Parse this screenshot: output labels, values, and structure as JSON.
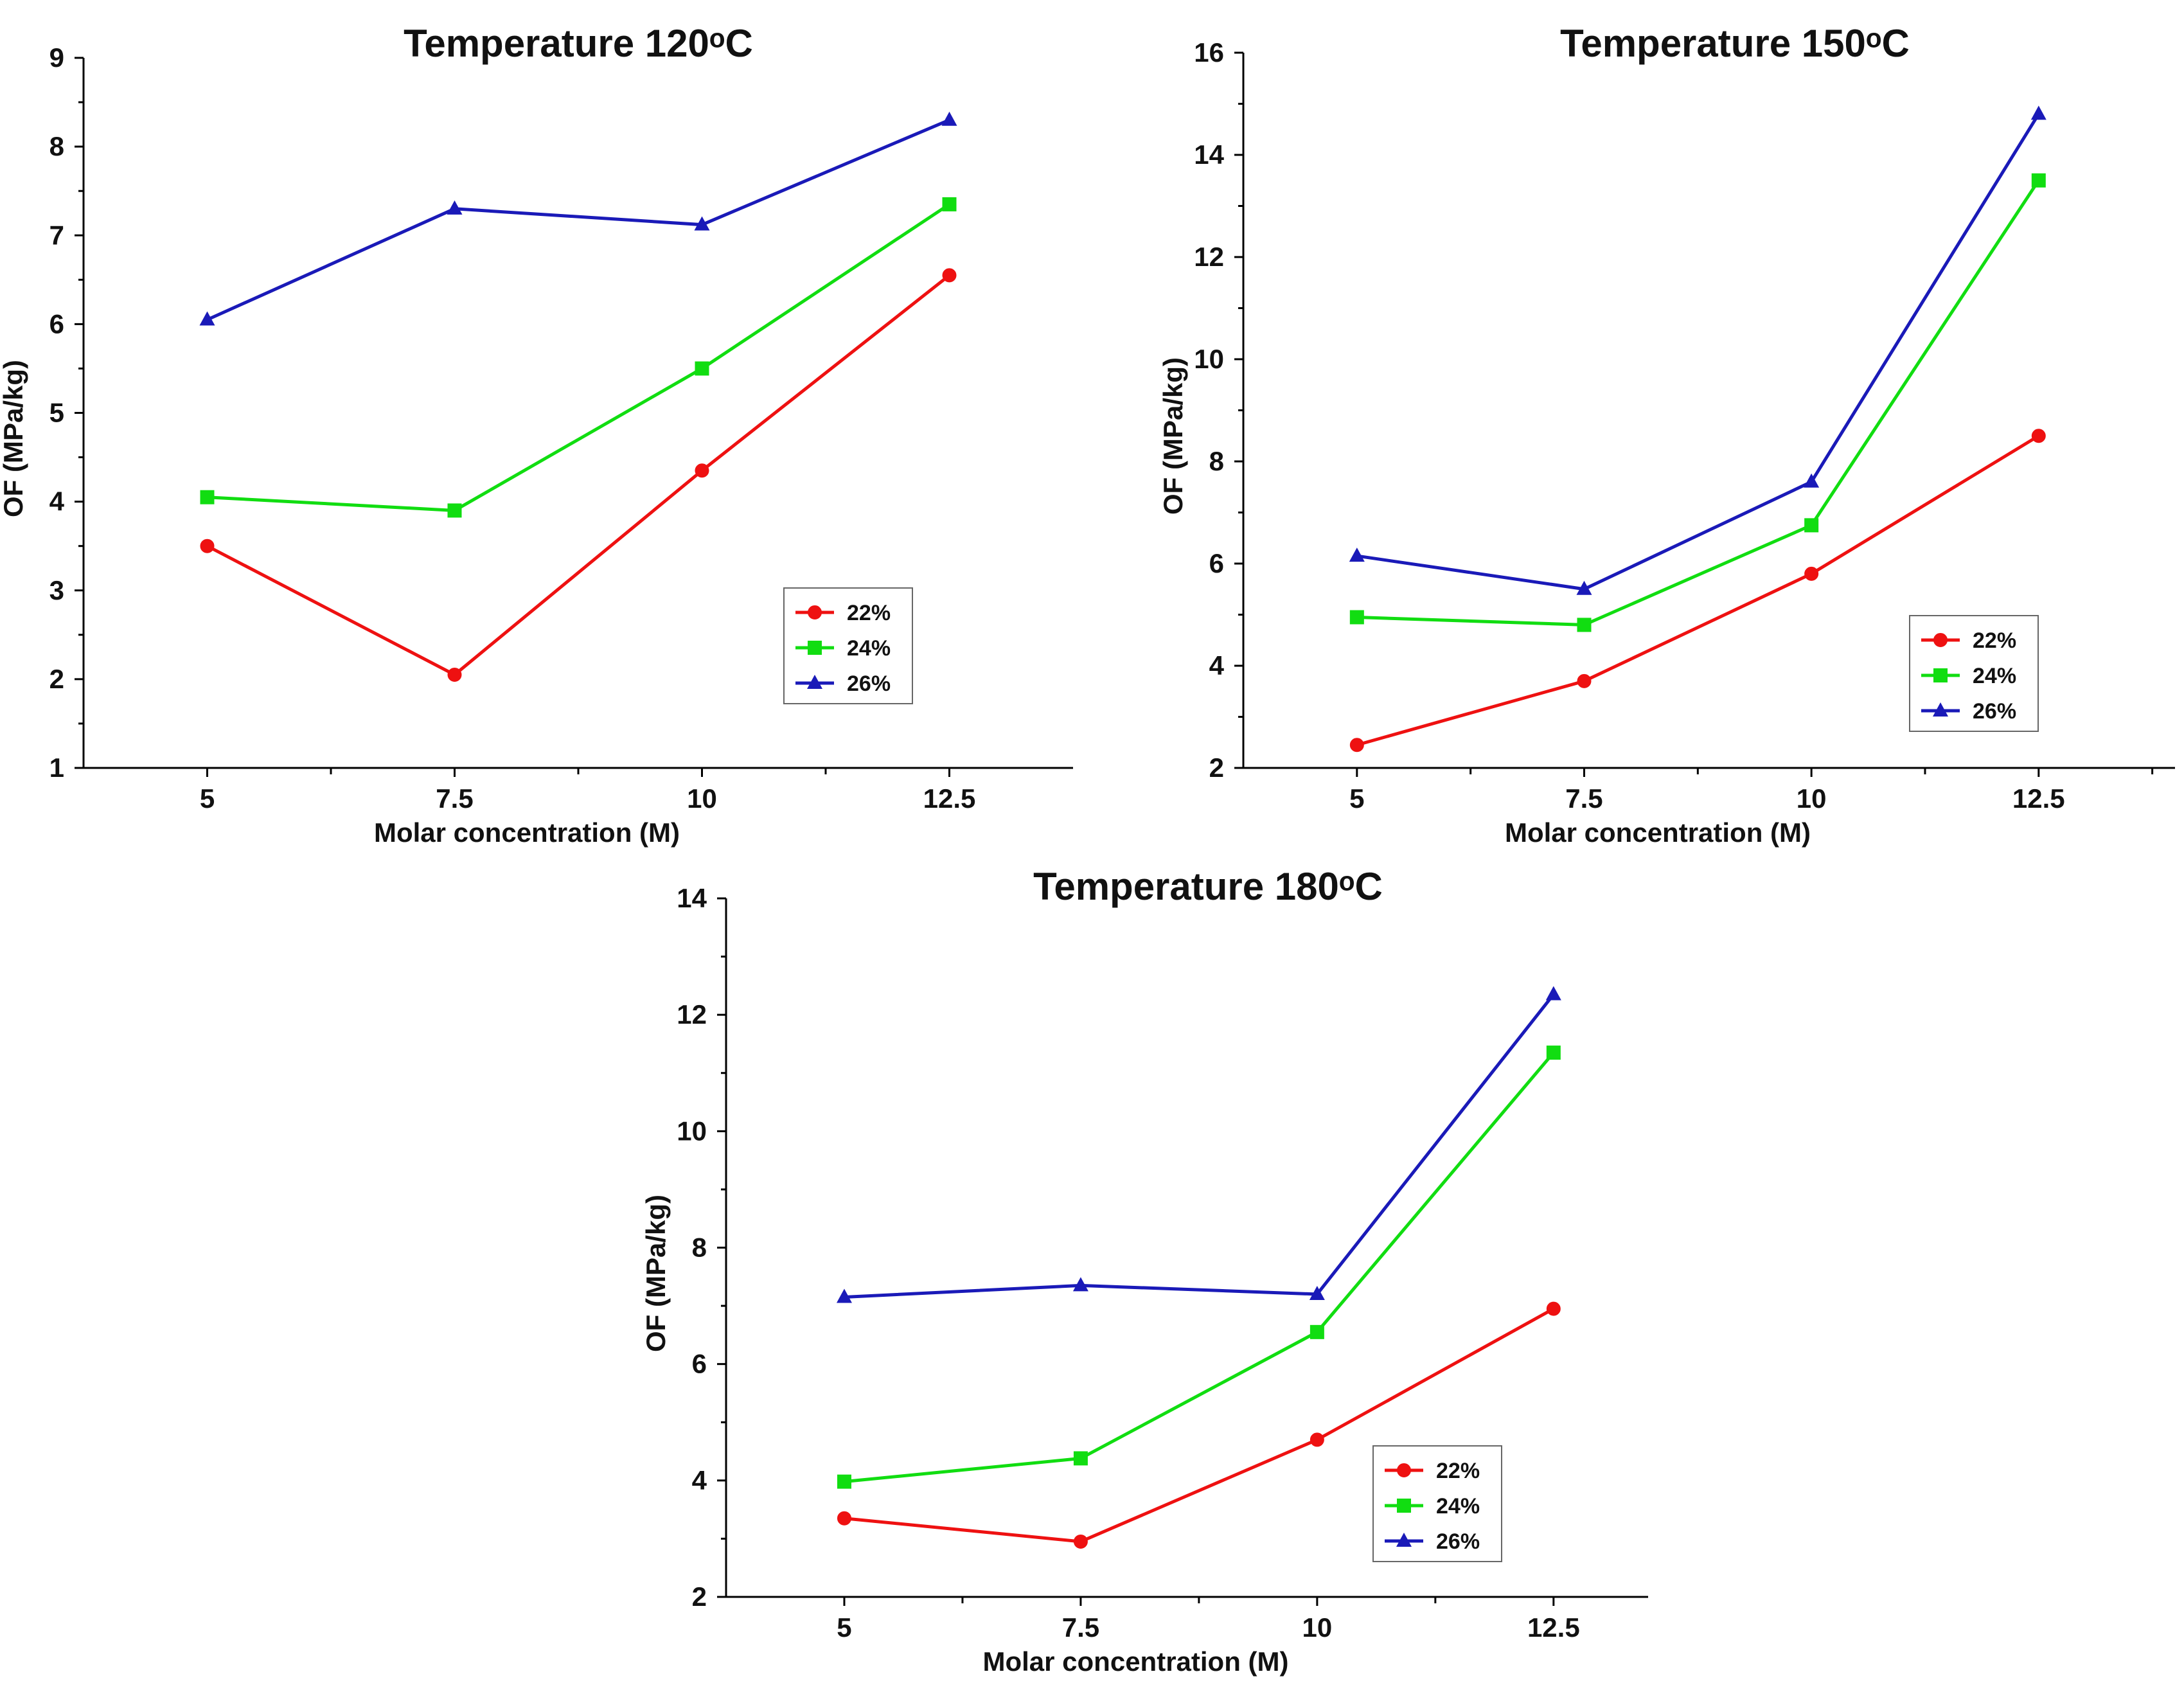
{
  "chart_data": [
    {
      "type": "line",
      "title": "Temperature 120ᵒC",
      "xlabel": "Molar concentration (M)",
      "ylabel": "OF (MPa/kg)",
      "x": [
        5,
        7.5,
        10,
        12.5
      ],
      "xlim": [
        3.75,
        13.75
      ],
      "ylim": [
        1,
        9
      ],
      "yticks": [
        1,
        2,
        3,
        4,
        5,
        6,
        7,
        8,
        9
      ],
      "xticks": [
        5,
        7.5,
        10,
        12.5
      ],
      "legend_position": "bottom-right",
      "series": [
        {
          "name": "22%",
          "color": "#ee1111",
          "marker": "diamond",
          "values": [
            3.5,
            2.05,
            4.35,
            6.55
          ]
        },
        {
          "name": "24%",
          "color": "#11dd11",
          "marker": "square",
          "values": [
            4.05,
            3.9,
            5.5,
            7.35
          ]
        },
        {
          "name": "26%",
          "color": "#1a1ab8",
          "marker": "triangle",
          "values": [
            6.05,
            7.3,
            7.12,
            8.3
          ]
        }
      ]
    },
    {
      "type": "line",
      "title": "Temperature 150ᵒC",
      "xlabel": "Molar concentration (M)",
      "ylabel": "OF (MPa/kg)",
      "x": [
        5,
        7.5,
        10,
        12.5
      ],
      "xlim": [
        3.75,
        14.0
      ],
      "ylim": [
        2,
        16
      ],
      "yticks": [
        2,
        4,
        6,
        8,
        10,
        12,
        14,
        16
      ],
      "xticks": [
        5,
        7.5,
        10,
        12.5
      ],
      "legend_position": "bottom-right",
      "series": [
        {
          "name": "22%",
          "color": "#ee1111",
          "marker": "diamond",
          "values": [
            2.45,
            3.7,
            5.8,
            8.5
          ]
        },
        {
          "name": "24%",
          "color": "#11dd11",
          "marker": "square",
          "values": [
            4.95,
            4.8,
            6.75,
            13.5
          ]
        },
        {
          "name": "26%",
          "color": "#1a1ab8",
          "marker": "triangle",
          "values": [
            6.15,
            5.5,
            7.6,
            14.8
          ]
        }
      ]
    },
    {
      "type": "line",
      "title": "Temperature 180ᵒC",
      "xlabel": "Molar concentration (M)",
      "ylabel": "OF (MPa/kg)",
      "x": [
        5,
        7.5,
        10,
        12.5
      ],
      "xlim": [
        3.75,
        13.5
      ],
      "ylim": [
        2,
        14
      ],
      "yticks": [
        2,
        4,
        6,
        8,
        10,
        12,
        14
      ],
      "xticks": [
        5,
        7.5,
        10,
        12.5
      ],
      "legend_position": "bottom-right",
      "series": [
        {
          "name": "22%",
          "color": "#ee1111",
          "marker": "diamond",
          "values": [
            3.35,
            2.95,
            4.7,
            6.95
          ]
        },
        {
          "name": "24%",
          "color": "#11dd11",
          "marker": "square",
          "values": [
            3.98,
            4.38,
            6.55,
            11.35
          ]
        },
        {
          "name": "26%",
          "color": "#1a1ab8",
          "marker": "triangle",
          "values": [
            7.15,
            7.35,
            7.2,
            12.35
          ]
        }
      ]
    }
  ]
}
